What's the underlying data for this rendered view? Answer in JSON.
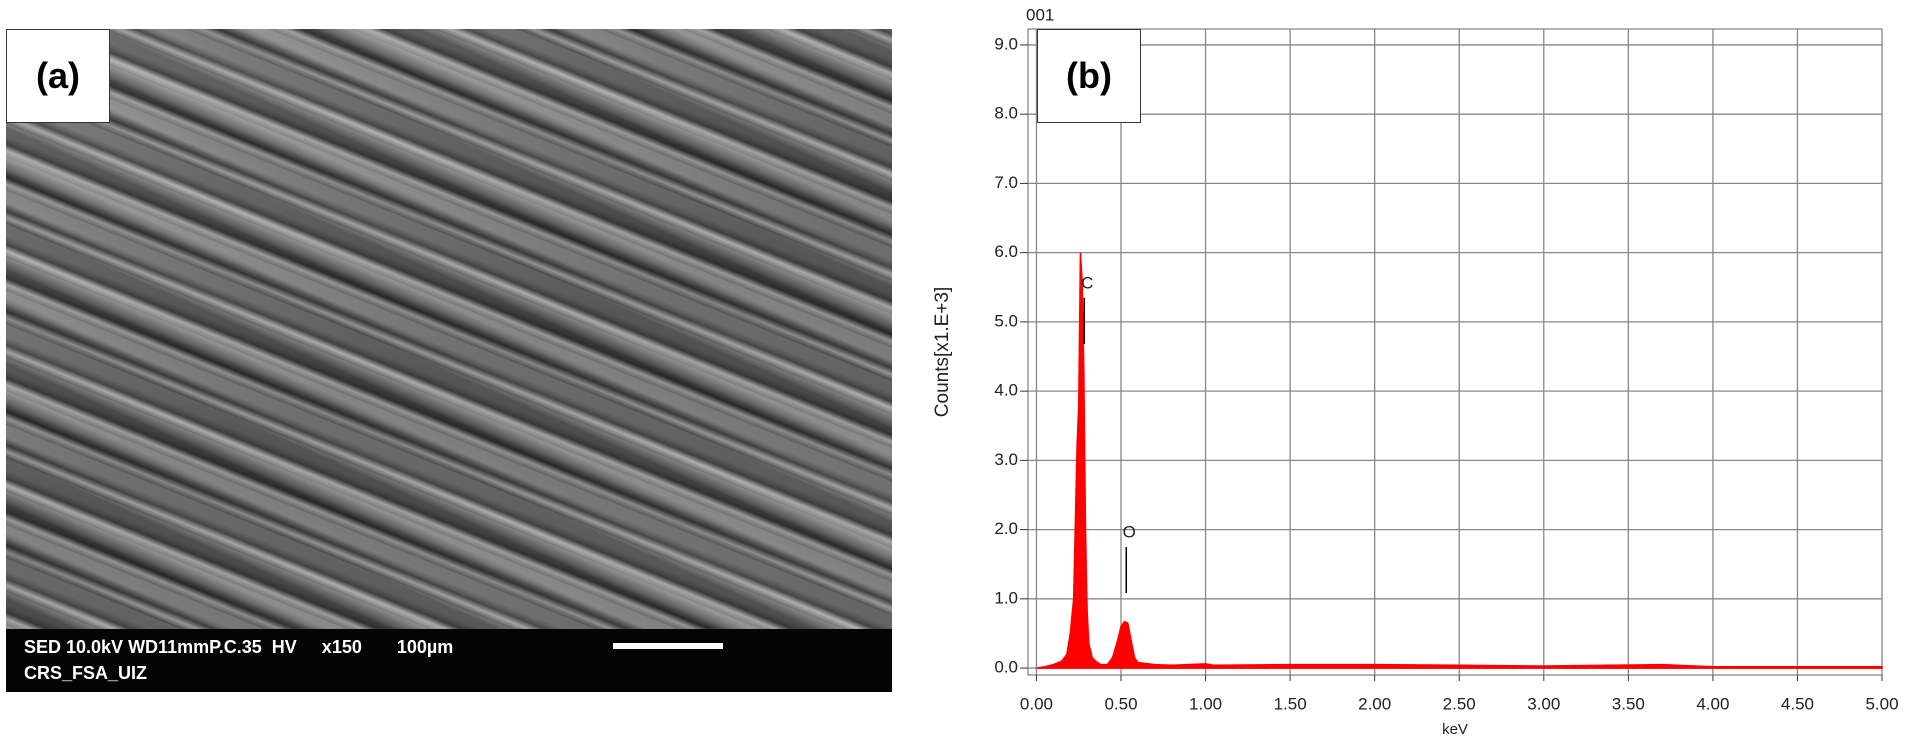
{
  "micrograph": {
    "label": "(a)",
    "info_line_1": "SED 10.0kV WD11mmP.C.35  HV     x150       100µm",
    "info_line_2": "CRS_FSA_UIZ"
  },
  "chart_data": {
    "type": "area",
    "title": "001",
    "panel_label": "(b)",
    "x_label": "keV",
    "y_label": "Counts[x1.E+3]",
    "color": "#ff0000",
    "grid": true,
    "x": [
      0.0,
      0.05,
      0.1,
      0.15,
      0.18,
      0.2,
      0.22,
      0.24,
      0.25,
      0.26,
      0.27,
      0.28,
      0.29,
      0.3,
      0.31,
      0.33,
      0.35,
      0.38,
      0.42,
      0.45,
      0.48,
      0.5,
      0.52,
      0.54,
      0.56,
      0.58,
      0.6,
      0.7,
      0.8,
      1.0,
      1.05,
      1.5,
      2.0,
      2.5,
      3.0,
      3.7,
      4.0,
      4.5,
      5.0
    ],
    "values": [
      0,
      0.02,
      0.05,
      0.1,
      0.2,
      0.5,
      1.0,
      3.2,
      3.8,
      6.0,
      5.6,
      4.3,
      2.0,
      0.8,
      0.35,
      0.15,
      0.1,
      0.05,
      0.05,
      0.15,
      0.4,
      0.6,
      0.67,
      0.65,
      0.4,
      0.15,
      0.08,
      0.05,
      0.04,
      0.06,
      0.04,
      0.05,
      0.05,
      0.04,
      0.03,
      0.05,
      0.02,
      0.02,
      0.02
    ],
    "annotations": [
      {
        "text": "C",
        "x": 0.277,
        "y": 5.55
      },
      {
        "text": "O",
        "x": 0.525,
        "y": 1.95
      }
    ],
    "xlim": [
      -0.05,
      5.0
    ],
    "ylim": [
      -0.1,
      9.23
    ],
    "xticks": [
      {
        "value": 0,
        "label": "0.00"
      },
      {
        "value": 0.5,
        "label": "0.50"
      },
      {
        "value": 1,
        "label": "1.00"
      },
      {
        "value": 1.5,
        "label": "1.50"
      },
      {
        "value": 2,
        "label": "2.00"
      },
      {
        "value": 2.5,
        "label": "2.50"
      },
      {
        "value": 3,
        "label": "3.00"
      },
      {
        "value": 3.5,
        "label": "3.50"
      },
      {
        "value": 4,
        "label": "4.00"
      },
      {
        "value": 4.5,
        "label": "4.50"
      },
      {
        "value": 5,
        "label": "5.00"
      }
    ],
    "yticks": [
      {
        "value": 0,
        "label": "0.0"
      },
      {
        "value": 1,
        "label": "1.0"
      },
      {
        "value": 2,
        "label": "2.0"
      },
      {
        "value": 3,
        "label": "3.0"
      },
      {
        "value": 4,
        "label": "4.0"
      },
      {
        "value": 5,
        "label": "5.0"
      },
      {
        "value": 6,
        "label": "6.0"
      },
      {
        "value": 7,
        "label": "7.0"
      },
      {
        "value": 8,
        "label": "8.0"
      },
      {
        "value": 9,
        "label": "9.0"
      }
    ]
  }
}
